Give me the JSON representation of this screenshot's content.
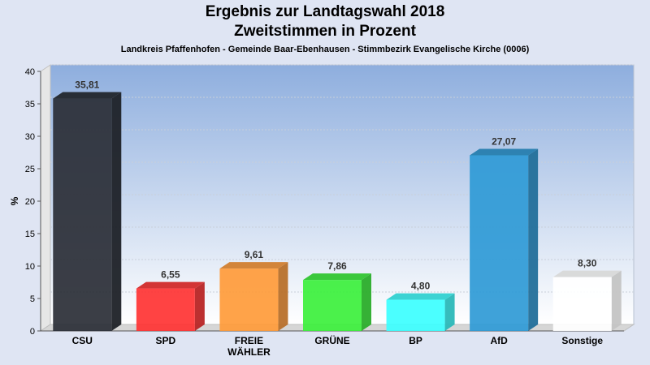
{
  "chart_data": {
    "type": "bar",
    "title": "Ergebnis zur Landtagswahl 2018",
    "title2": "Zweitstimmen in Prozent",
    "subtitle": "Landkreis Pfaffenhofen - Gemeinde Baar-Ebenhausen - Stimmbezirk Evangelische Kirche (0006)",
    "ylabel": "%",
    "ylim": [
      0,
      40
    ],
    "yticks": [
      0,
      5,
      10,
      15,
      20,
      25,
      30,
      35,
      40
    ],
    "grid": true,
    "categories": [
      "CSU",
      "SPD",
      "FREIE WÄHLER",
      "GRÜNE",
      "BP",
      "AfD",
      "Sonstige"
    ],
    "category_lines": [
      [
        "CSU"
      ],
      [
        "SPD"
      ],
      [
        "FREIE",
        "WÄHLER"
      ],
      [
        "GRÜNE"
      ],
      [
        "BP"
      ],
      [
        "AfD"
      ],
      [
        "Sonstige"
      ]
    ],
    "values": [
      35.81,
      6.55,
      9.61,
      7.86,
      4.8,
      27.07,
      8.3
    ],
    "value_labels": [
      "35,81",
      "6,55",
      "9,61",
      "7,86",
      "4,80",
      "27,07",
      "8,30"
    ],
    "colors": [
      "#2a2e36",
      "#ff3333",
      "#ff9b3a",
      "#3cf03c",
      "#3cffff",
      "#2f9ad6",
      "#ffffff"
    ]
  }
}
